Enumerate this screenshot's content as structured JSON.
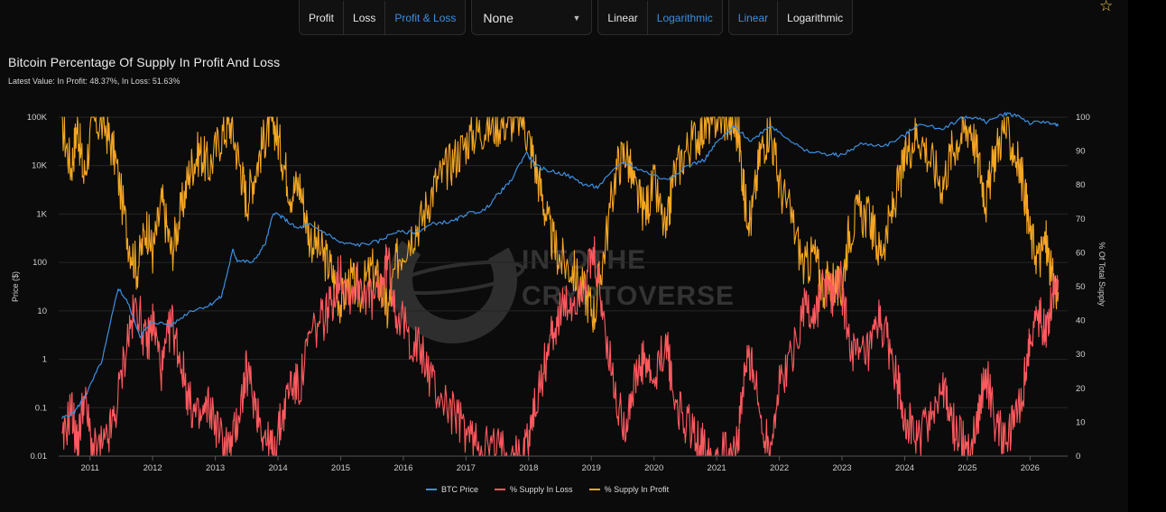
{
  "toolbar": {
    "groups": [
      {
        "items": [
          {
            "label": "Profit",
            "active": false
          },
          {
            "label": "Loss",
            "active": false
          },
          {
            "label": "Profit & Loss",
            "active": true
          }
        ]
      },
      {
        "dropdown": "None"
      },
      {
        "items": [
          {
            "label": "Linear",
            "active": false
          },
          {
            "label": "Logarithmic",
            "active": true
          }
        ]
      },
      {
        "items": [
          {
            "label": "Linear",
            "active": true
          },
          {
            "label": "Logarithmic",
            "active": false
          }
        ]
      }
    ]
  },
  "icons": {
    "favorite": "star-outline-icon"
  },
  "watermark": {
    "line1": "INTOTHE",
    "line2": "CRYPTOVERSE"
  },
  "colors": {
    "btc_price": "#3d8fe0",
    "loss": "#ff5a5f",
    "profit": "#f5a623",
    "background": "#0b0b0b"
  },
  "chart_data": {
    "type": "line",
    "title": "Bitcoin Percentage Of Supply In Profit And Loss",
    "subtitle": "Latest Value: In Profit: 48.37%, In Loss: 51.63%",
    "left_axis": {
      "label": "Price ($)",
      "scale": "log",
      "range": [
        0.01,
        100000
      ],
      "ticks": [
        "0.01",
        "0.1",
        "1",
        "10",
        "100",
        "1K",
        "10K",
        "100K"
      ]
    },
    "right_axis": {
      "label": "% Of Total Supply",
      "scale": "linear",
      "range": [
        0,
        100
      ],
      "ticks": [
        "0",
        "10",
        "20",
        "30",
        "40",
        "50",
        "60",
        "70",
        "80",
        "90",
        "100"
      ]
    },
    "x_axis": {
      "range": [
        2010.5,
        2026.6
      ],
      "ticks": [
        "2011",
        "2012",
        "2013",
        "2014",
        "2015",
        "2016",
        "2017",
        "2018",
        "2019",
        "2020",
        "2021",
        "2022",
        "2023",
        "2024",
        "2025",
        "2026"
      ]
    },
    "grid": true,
    "legend_position": "bottom-center",
    "series": [
      {
        "name": "BTC Price",
        "axis": "left",
        "points": [
          [
            2010.55,
            0.06
          ],
          [
            2010.75,
            0.08
          ],
          [
            2010.95,
            0.2
          ],
          [
            2011.2,
            1
          ],
          [
            2011.45,
            30
          ],
          [
            2011.6,
            15
          ],
          [
            2011.8,
            3
          ],
          [
            2012.0,
            6
          ],
          [
            2012.3,
            5
          ],
          [
            2012.6,
            10
          ],
          [
            2012.9,
            13
          ],
          [
            2013.1,
            20
          ],
          [
            2013.28,
            180
          ],
          [
            2013.35,
            110
          ],
          [
            2013.6,
            100
          ],
          [
            2013.8,
            250
          ],
          [
            2013.93,
            1100
          ],
          [
            2014.1,
            800
          ],
          [
            2014.3,
            500
          ],
          [
            2014.5,
            600
          ],
          [
            2014.8,
            380
          ],
          [
            2015.0,
            250
          ],
          [
            2015.3,
            230
          ],
          [
            2015.6,
            270
          ],
          [
            2015.85,
            420
          ],
          [
            2016.2,
            420
          ],
          [
            2016.5,
            650
          ],
          [
            2016.8,
            700
          ],
          [
            2017.0,
            1000
          ],
          [
            2017.3,
            1200
          ],
          [
            2017.5,
            2500
          ],
          [
            2017.7,
            4500
          ],
          [
            2017.96,
            19000
          ],
          [
            2018.1,
            10000
          ],
          [
            2018.3,
            8000
          ],
          [
            2018.6,
            6500
          ],
          [
            2018.9,
            4000
          ],
          [
            2019.1,
            3600
          ],
          [
            2019.5,
            12000
          ],
          [
            2019.8,
            8000
          ],
          [
            2020.2,
            5000
          ],
          [
            2020.5,
            9500
          ],
          [
            2020.8,
            13000
          ],
          [
            2021.0,
            30000
          ],
          [
            2021.28,
            63000
          ],
          [
            2021.55,
            32000
          ],
          [
            2021.85,
            68000
          ],
          [
            2022.1,
            40000
          ],
          [
            2022.4,
            20000
          ],
          [
            2022.8,
            17000
          ],
          [
            2023.0,
            16500
          ],
          [
            2023.3,
            28000
          ],
          [
            2023.7,
            26000
          ],
          [
            2024.0,
            42000
          ],
          [
            2024.2,
            70000
          ],
          [
            2024.6,
            58000
          ],
          [
            2024.9,
            95000
          ],
          [
            2025.1,
            100000
          ],
          [
            2025.3,
            80000
          ],
          [
            2025.6,
            118000
          ],
          [
            2025.8,
            110000
          ],
          [
            2026.0,
            75000
          ],
          [
            2026.3,
            80000
          ],
          [
            2026.45,
            65000
          ]
        ]
      },
      {
        "name": "% Supply In Loss",
        "axis": "right",
        "points": [
          [
            2010.55,
            2
          ],
          [
            2010.7,
            15
          ],
          [
            2010.8,
            2
          ],
          [
            2010.9,
            18
          ],
          [
            2011.05,
            1
          ],
          [
            2011.25,
            3
          ],
          [
            2011.4,
            12
          ],
          [
            2011.6,
            35
          ],
          [
            2011.75,
            45
          ],
          [
            2011.9,
            32
          ],
          [
            2012.0,
            40
          ],
          [
            2012.15,
            25
          ],
          [
            2012.3,
            40
          ],
          [
            2012.45,
            28
          ],
          [
            2012.6,
            15
          ],
          [
            2012.75,
            10
          ],
          [
            2012.9,
            15
          ],
          [
            2013.1,
            5
          ],
          [
            2013.25,
            2
          ],
          [
            2013.4,
            15
          ],
          [
            2013.5,
            25
          ],
          [
            2013.65,
            15
          ],
          [
            2013.8,
            5
          ],
          [
            2013.92,
            1
          ],
          [
            2014.05,
            10
          ],
          [
            2014.2,
            22
          ],
          [
            2014.35,
            20
          ],
          [
            2014.5,
            35
          ],
          [
            2014.7,
            40
          ],
          [
            2014.85,
            45
          ],
          [
            2015.0,
            55
          ],
          [
            2015.15,
            48
          ],
          [
            2015.3,
            52
          ],
          [
            2015.5,
            45
          ],
          [
            2015.65,
            50
          ],
          [
            2015.75,
            58
          ],
          [
            2015.9,
            42
          ],
          [
            2016.1,
            35
          ],
          [
            2016.3,
            30
          ],
          [
            2016.5,
            20
          ],
          [
            2016.7,
            15
          ],
          [
            2016.9,
            10
          ],
          [
            2017.1,
            5
          ],
          [
            2017.3,
            3
          ],
          [
            2017.5,
            2
          ],
          [
            2017.7,
            1
          ],
          [
            2017.9,
            0
          ],
          [
            2018.05,
            10
          ],
          [
            2018.2,
            22
          ],
          [
            2018.35,
            35
          ],
          [
            2018.5,
            42
          ],
          [
            2018.7,
            45
          ],
          [
            2018.9,
            52
          ],
          [
            2019.05,
            58
          ],
          [
            2019.2,
            40
          ],
          [
            2019.4,
            15
          ],
          [
            2019.55,
            10
          ],
          [
            2019.7,
            22
          ],
          [
            2019.85,
            28
          ],
          [
            2020.0,
            20
          ],
          [
            2020.2,
            35
          ],
          [
            2020.3,
            18
          ],
          [
            2020.5,
            10
          ],
          [
            2020.7,
            5
          ],
          [
            2020.85,
            2
          ],
          [
            2021.0,
            0
          ],
          [
            2021.2,
            1
          ],
          [
            2021.35,
            5
          ],
          [
            2021.45,
            25
          ],
          [
            2021.55,
            30
          ],
          [
            2021.7,
            10
          ],
          [
            2021.85,
            3
          ],
          [
            2022.0,
            20
          ],
          [
            2022.2,
            30
          ],
          [
            2022.4,
            45
          ],
          [
            2022.55,
            40
          ],
          [
            2022.7,
            50
          ],
          [
            2022.85,
            48
          ],
          [
            2022.98,
            52
          ],
          [
            2023.1,
            35
          ],
          [
            2023.25,
            28
          ],
          [
            2023.45,
            30
          ],
          [
            2023.6,
            40
          ],
          [
            2023.75,
            32
          ],
          [
            2023.9,
            20
          ],
          [
            2024.05,
            10
          ],
          [
            2024.2,
            4
          ],
          [
            2024.4,
            12
          ],
          [
            2024.6,
            20
          ],
          [
            2024.75,
            10
          ],
          [
            2024.9,
            5
          ],
          [
            2025.05,
            2
          ],
          [
            2025.2,
            15
          ],
          [
            2025.3,
            25
          ],
          [
            2025.45,
            10
          ],
          [
            2025.6,
            3
          ],
          [
            2025.75,
            10
          ],
          [
            2025.9,
            20
          ],
          [
            2026.0,
            35
          ],
          [
            2026.15,
            42
          ],
          [
            2026.25,
            36
          ],
          [
            2026.35,
            48
          ],
          [
            2026.45,
            52
          ]
        ]
      },
      {
        "name": "% Supply In Profit",
        "axis": "right",
        "points": [
          [
            2010.55,
            98
          ],
          [
            2010.7,
            85
          ],
          [
            2010.8,
            98
          ],
          [
            2010.9,
            82
          ],
          [
            2011.05,
            99
          ],
          [
            2011.25,
            97
          ],
          [
            2011.4,
            88
          ],
          [
            2011.6,
            65
          ],
          [
            2011.75,
            55
          ],
          [
            2011.9,
            68
          ],
          [
            2012.0,
            60
          ],
          [
            2012.15,
            75
          ],
          [
            2012.3,
            60
          ],
          [
            2012.45,
            72
          ],
          [
            2012.6,
            85
          ],
          [
            2012.75,
            90
          ],
          [
            2012.9,
            85
          ],
          [
            2013.1,
            95
          ],
          [
            2013.25,
            98
          ],
          [
            2013.4,
            85
          ],
          [
            2013.5,
            75
          ],
          [
            2013.65,
            85
          ],
          [
            2013.8,
            95
          ],
          [
            2013.92,
            99
          ],
          [
            2014.05,
            90
          ],
          [
            2014.2,
            78
          ],
          [
            2014.35,
            80
          ],
          [
            2014.5,
            65
          ],
          [
            2014.7,
            60
          ],
          [
            2014.85,
            55
          ],
          [
            2015.0,
            45
          ],
          [
            2015.15,
            52
          ],
          [
            2015.3,
            48
          ],
          [
            2015.5,
            55
          ],
          [
            2015.65,
            50
          ],
          [
            2015.75,
            42
          ],
          [
            2015.9,
            58
          ],
          [
            2016.1,
            65
          ],
          [
            2016.3,
            70
          ],
          [
            2016.5,
            80
          ],
          [
            2016.7,
            85
          ],
          [
            2016.9,
            90
          ],
          [
            2017.1,
            95
          ],
          [
            2017.3,
            97
          ],
          [
            2017.5,
            98
          ],
          [
            2017.7,
            99
          ],
          [
            2017.9,
            100
          ],
          [
            2018.05,
            90
          ],
          [
            2018.2,
            78
          ],
          [
            2018.35,
            65
          ],
          [
            2018.5,
            58
          ],
          [
            2018.7,
            55
          ],
          [
            2018.9,
            48
          ],
          [
            2019.05,
            42
          ],
          [
            2019.2,
            60
          ],
          [
            2019.4,
            85
          ],
          [
            2019.55,
            90
          ],
          [
            2019.7,
            78
          ],
          [
            2019.85,
            72
          ],
          [
            2020.0,
            80
          ],
          [
            2020.2,
            65
          ],
          [
            2020.3,
            82
          ],
          [
            2020.5,
            90
          ],
          [
            2020.7,
            95
          ],
          [
            2020.85,
            98
          ],
          [
            2021.0,
            100
          ],
          [
            2021.2,
            99
          ],
          [
            2021.35,
            95
          ],
          [
            2021.45,
            75
          ],
          [
            2021.55,
            70
          ],
          [
            2021.7,
            90
          ],
          [
            2021.85,
            97
          ],
          [
            2022.0,
            80
          ],
          [
            2022.2,
            70
          ],
          [
            2022.4,
            55
          ],
          [
            2022.55,
            60
          ],
          [
            2022.7,
            50
          ],
          [
            2022.85,
            52
          ],
          [
            2022.98,
            48
          ],
          [
            2023.1,
            65
          ],
          [
            2023.25,
            72
          ],
          [
            2023.45,
            70
          ],
          [
            2023.6,
            60
          ],
          [
            2023.75,
            68
          ],
          [
            2023.9,
            80
          ],
          [
            2024.05,
            90
          ],
          [
            2024.2,
            96
          ],
          [
            2024.4,
            88
          ],
          [
            2024.6,
            80
          ],
          [
            2024.75,
            90
          ],
          [
            2024.9,
            95
          ],
          [
            2025.05,
            98
          ],
          [
            2025.2,
            85
          ],
          [
            2025.3,
            75
          ],
          [
            2025.45,
            90
          ],
          [
            2025.6,
            97
          ],
          [
            2025.75,
            90
          ],
          [
            2025.9,
            80
          ],
          [
            2026.0,
            65
          ],
          [
            2026.15,
            58
          ],
          [
            2026.25,
            64
          ],
          [
            2026.35,
            52
          ],
          [
            2026.45,
            48.37
          ]
        ]
      }
    ]
  }
}
